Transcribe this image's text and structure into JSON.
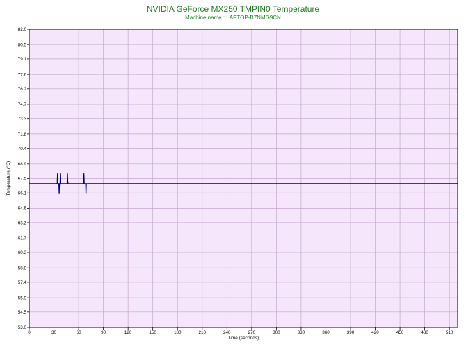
{
  "chart_data": {
    "type": "line",
    "title": "NVIDIA GeForce MX250 TMPIN0 Temperature",
    "subtitle": "Machine name : LAPTOP-B7NMG9CN",
    "xlabel": "Time (seconds)",
    "ylabel": "Temperature (°C)",
    "xlim": [
      0,
      520
    ],
    "ylim": [
      53.0,
      82.0
    ],
    "x_ticks": [
      0,
      30,
      60,
      90,
      120,
      150,
      180,
      210,
      240,
      270,
      300,
      330,
      360,
      390,
      420,
      450,
      480,
      510
    ],
    "y_ticks": [
      "82.0",
      "80.5",
      "79.1",
      "77.6",
      "76.2",
      "74.7",
      "73.3",
      "71.8",
      "70.4",
      "68.9",
      "67.5",
      "66.1",
      "64.6",
      "63.2",
      "61.7",
      "60.3",
      "58.8",
      "57.4",
      "55.9",
      "54.5",
      "53.0"
    ],
    "grid": true,
    "background_color": "#f6e6fb",
    "grid_color": "#c3a7cc",
    "line_color": "#00007a",
    "series": [
      {
        "name": "",
        "points": [
          [
            0,
            67.0
          ],
          [
            34,
            67.0
          ],
          [
            34.4,
            68.0
          ],
          [
            34.8,
            67.0
          ],
          [
            36,
            67.0
          ],
          [
            36.4,
            66.0
          ],
          [
            36.8,
            67.0
          ],
          [
            37.5,
            67.0
          ],
          [
            37.9,
            68.0
          ],
          [
            38.3,
            67.0
          ],
          [
            46,
            67.0
          ],
          [
            46.4,
            68.0
          ],
          [
            46.8,
            67.2
          ],
          [
            47.2,
            67.0
          ],
          [
            66,
            67.0
          ],
          [
            66.4,
            68.0
          ],
          [
            66.8,
            67.0
          ],
          [
            68.5,
            67.0
          ],
          [
            68.9,
            66.0
          ],
          [
            69.3,
            67.0
          ],
          [
            520,
            67.0
          ]
        ]
      }
    ]
  }
}
